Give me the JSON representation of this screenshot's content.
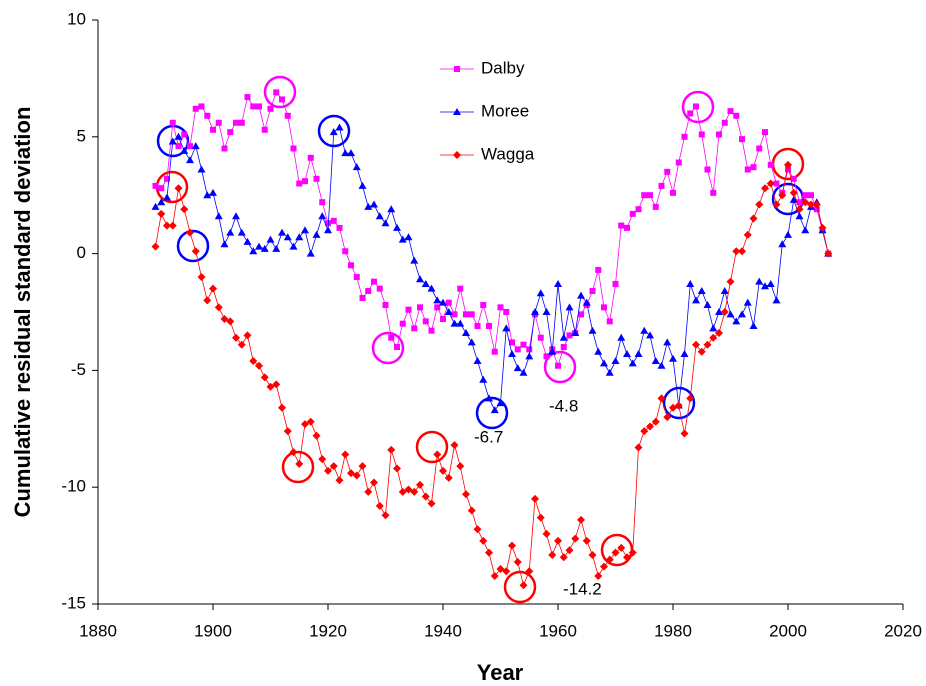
{
  "chart_data": {
    "type": "line",
    "xlabel": "Year",
    "ylabel": "Cumulative residual standard deviation",
    "x": [
      1890,
      1891,
      1892,
      1893,
      1894,
      1895,
      1896,
      1897,
      1898,
      1899,
      1900,
      1901,
      1902,
      1903,
      1904,
      1905,
      1906,
      1907,
      1908,
      1909,
      1910,
      1911,
      1912,
      1913,
      1914,
      1915,
      1916,
      1917,
      1918,
      1919,
      1920,
      1921,
      1922,
      1923,
      1924,
      1925,
      1926,
      1927,
      1928,
      1929,
      1930,
      1931,
      1932,
      1933,
      1934,
      1935,
      1936,
      1937,
      1938,
      1939,
      1940,
      1941,
      1942,
      1943,
      1944,
      1945,
      1946,
      1947,
      1948,
      1949,
      1950,
      1951,
      1952,
      1953,
      1954,
      1955,
      1956,
      1957,
      1958,
      1959,
      1960,
      1961,
      1962,
      1963,
      1964,
      1965,
      1966,
      1967,
      1968,
      1969,
      1970,
      1971,
      1972,
      1973,
      1974,
      1975,
      1976,
      1977,
      1978,
      1979,
      1980,
      1981,
      1982,
      1983,
      1984,
      1985,
      1986,
      1987,
      1988,
      1989,
      1990,
      1991,
      1992,
      1993,
      1994,
      1995,
      1996,
      1997,
      1998,
      1999,
      2000,
      2001,
      2002,
      2003,
      2004,
      2005,
      2006,
      2007
    ],
    "series": [
      {
        "name": "Dalby",
        "color": "#ff00ff",
        "marker": "square",
        "values": [
          2.9,
          2.8,
          3.2,
          5.6,
          4.6,
          5.1,
          4.6,
          6.2,
          6.3,
          5.9,
          5.3,
          5.6,
          4.5,
          5.2,
          5.6,
          5.6,
          6.7,
          6.3,
          6.3,
          5.3,
          6.2,
          6.9,
          6.6,
          5.9,
          4.5,
          3.0,
          3.1,
          4.1,
          3.2,
          2.2,
          1.3,
          1.4,
          1.1,
          0.1,
          -0.5,
          -1.0,
          -1.9,
          -1.6,
          -1.2,
          -1.5,
          -2.2,
          -3.6,
          -4.0,
          -3.0,
          -2.4,
          -3.2,
          -2.3,
          -2.9,
          -3.3,
          -2.3,
          -2.8,
          -2.1,
          -2.6,
          -1.5,
          -2.6,
          -2.6,
          -3.1,
          -2.2,
          -3.1,
          -4.2,
          -2.3,
          -2.5,
          -3.8,
          -4.1,
          -3.9,
          -4.1,
          -2.6,
          -3.6,
          -4.4,
          -4.1,
          -4.8,
          -4.0,
          -3.5,
          -3.4,
          -2.6,
          -2.2,
          -1.6,
          -0.7,
          -2.3,
          -2.9,
          -1.3,
          1.2,
          1.1,
          1.7,
          1.9,
          2.5,
          2.5,
          2.0,
          2.9,
          3.5,
          2.6,
          3.9,
          5.0,
          6.0,
          6.3,
          5.1,
          3.6,
          2.6,
          5.1,
          5.6,
          6.1,
          5.9,
          4.9,
          3.6,
          3.7,
          4.5,
          5.2,
          3.8,
          3.0,
          2.6,
          3.6,
          3.2,
          2.2,
          2.5,
          2.5,
          1.9,
          1.0,
          0.0
        ]
      },
      {
        "name": "Moree",
        "color": "#0000ff",
        "marker": "triangle",
        "values": [
          2.0,
          2.2,
          2.4,
          4.8,
          5.0,
          4.4,
          4.0,
          4.6,
          3.6,
          2.5,
          2.6,
          1.6,
          0.4,
          0.9,
          1.6,
          0.9,
          0.5,
          0.1,
          0.3,
          0.2,
          0.6,
          0.2,
          0.9,
          0.7,
          0.3,
          0.7,
          1.0,
          0.0,
          0.8,
          1.6,
          1.0,
          5.2,
          5.4,
          4.3,
          4.3,
          3.7,
          2.9,
          2.0,
          2.1,
          1.6,
          1.3,
          1.9,
          1.1,
          0.6,
          0.7,
          -0.3,
          -1.1,
          -1.3,
          -1.5,
          -2.0,
          -2.1,
          -2.5,
          -3.0,
          -3.0,
          -3.4,
          -3.8,
          -4.6,
          -5.4,
          -6.2,
          -6.7,
          -6.4,
          -3.2,
          -4.3,
          -4.9,
          -5.1,
          -4.4,
          -2.5,
          -1.7,
          -2.5,
          -4.2,
          -1.3,
          -3.6,
          -2.3,
          -3.4,
          -1.8,
          -2.1,
          -3.3,
          -4.2,
          -4.7,
          -5.1,
          -4.6,
          -3.6,
          -4.3,
          -4.7,
          -4.3,
          -3.3,
          -3.5,
          -4.6,
          -4.8,
          -3.8,
          -4.5,
          -6.5,
          -4.3,
          -1.3,
          -2.0,
          -1.6,
          -2.2,
          -3.2,
          -2.5,
          -1.6,
          -2.6,
          -2.9,
          -2.6,
          -2.1,
          -3.1,
          -1.2,
          -1.4,
          -1.3,
          -2.0,
          0.4,
          0.8,
          2.3,
          1.6,
          1.0,
          2.0,
          2.2,
          1.0,
          0.0
        ]
      },
      {
        "name": "Wagga",
        "color": "#ff0000",
        "marker": "diamond",
        "values": [
          0.3,
          1.7,
          1.2,
          1.2,
          2.8,
          1.9,
          0.9,
          0.1,
          -1.0,
          -2.0,
          -1.5,
          -2.3,
          -2.8,
          -2.9,
          -3.6,
          -3.9,
          -3.5,
          -4.6,
          -4.8,
          -5.3,
          -5.7,
          -5.6,
          -6.6,
          -7.6,
          -8.5,
          -9.0,
          -7.3,
          -7.2,
          -7.8,
          -8.8,
          -9.3,
          -9.1,
          -9.7,
          -8.6,
          -9.4,
          -9.5,
          -9.1,
          -10.2,
          -9.8,
          -10.8,
          -11.2,
          -8.4,
          -9.2,
          -10.2,
          -10.1,
          -10.2,
          -9.9,
          -10.4,
          -10.7,
          -8.6,
          -9.3,
          -9.6,
          -8.2,
          -9.1,
          -10.3,
          -11.0,
          -11.8,
          -12.3,
          -12.8,
          -13.8,
          -13.5,
          -13.6,
          -12.5,
          -13.2,
          -14.2,
          -13.6,
          -10.5,
          -11.3,
          -12.0,
          -12.9,
          -12.3,
          -13.0,
          -12.7,
          -12.2,
          -11.4,
          -12.3,
          -12.9,
          -13.8,
          -13.4,
          -13.1,
          -12.8,
          -12.6,
          -13.0,
          -12.8,
          -8.3,
          -7.6,
          -7.4,
          -7.2,
          -6.2,
          -7.0,
          -6.6,
          -6.5,
          -7.7,
          -6.2,
          -3.9,
          -4.2,
          -3.9,
          -3.6,
          -3.4,
          -2.5,
          -1.2,
          0.1,
          0.1,
          0.8,
          1.5,
          2.1,
          2.8,
          3.0,
          2.1,
          2.5,
          3.8,
          2.6,
          1.9,
          2.2,
          2.1,
          2.1,
          1.1,
          0.0
        ]
      }
    ],
    "annotations": [
      {
        "text": "-6.7"
      },
      {
        "text": "-4.8"
      },
      {
        "text": "-14.2"
      }
    ],
    "xlim": [
      1880,
      2020
    ],
    "xticks": [
      1880,
      1900,
      1920,
      1940,
      1960,
      1980,
      2000,
      2020
    ],
    "ylim": [
      -15,
      10
    ],
    "yticks": [
      -15,
      -10,
      -5,
      0,
      5,
      10
    ],
    "grid": false,
    "legend": "upper center"
  }
}
